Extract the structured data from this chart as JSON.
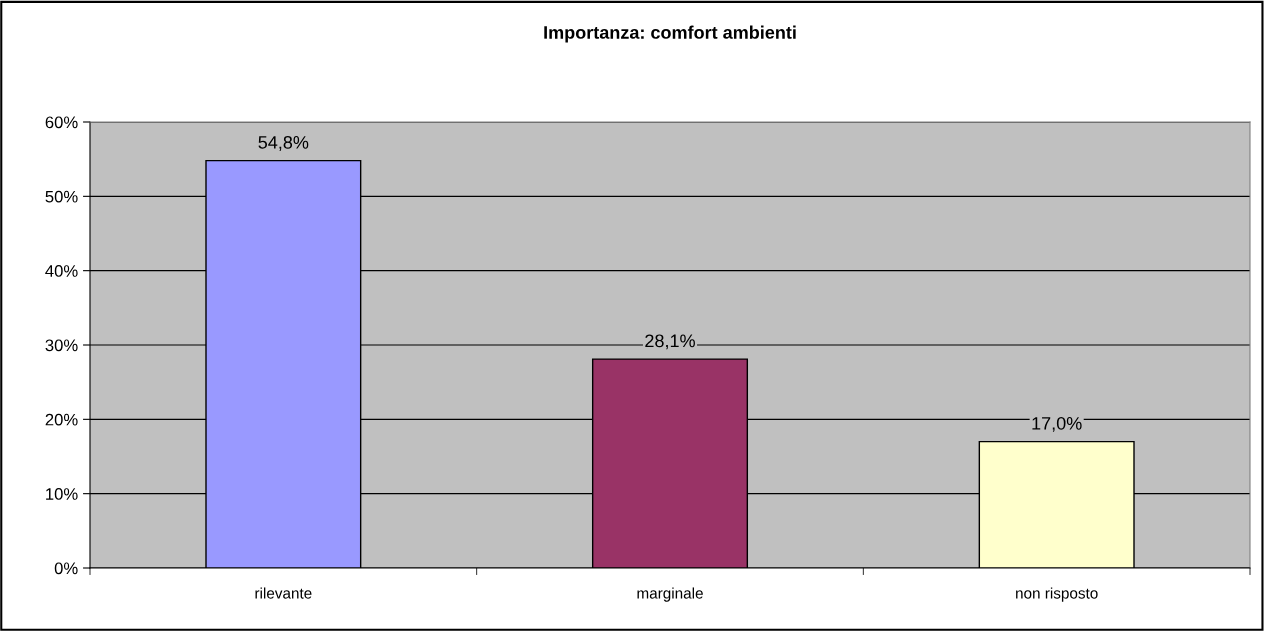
{
  "chart_data": {
    "type": "bar",
    "title": "Importanza: comfort ambienti",
    "categories": [
      "rilevante",
      "marginale",
      "non risposto"
    ],
    "values": [
      54.8,
      28.1,
      17.0
    ],
    "colors": [
      "#9999ff",
      "#993366",
      "#ffffcc"
    ],
    "value_labels": [
      "54,8%",
      "28,1%",
      "17,0%"
    ],
    "ylim": [
      0,
      60
    ],
    "yticks": [
      {
        "value": 0,
        "label": "0%"
      },
      {
        "value": 10,
        "label": "10%"
      },
      {
        "value": 20,
        "label": "20%"
      },
      {
        "value": 30,
        "label": "30%"
      },
      {
        "value": 40,
        "label": "40%"
      },
      {
        "value": 50,
        "label": "50%"
      },
      {
        "value": 60,
        "label": "60%"
      }
    ],
    "grid": "y",
    "legend": false
  }
}
